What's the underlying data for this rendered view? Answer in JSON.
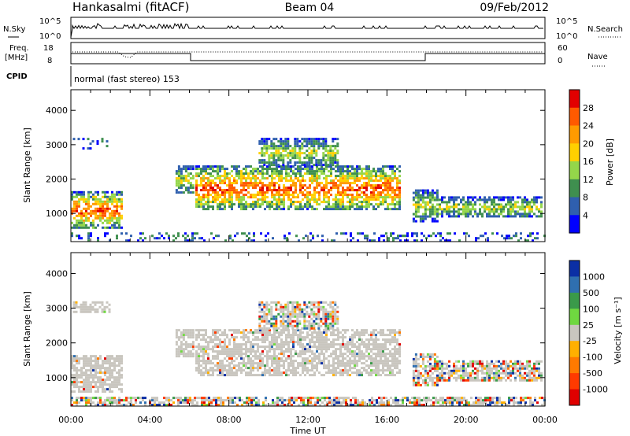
{
  "header": {
    "station": "Hankasalmi (fitACF)",
    "beam": "Beam 04",
    "date": "09/Feb/2012"
  },
  "info_panels": {
    "nsky_label": "N.Sky",
    "nsky_ticks": [
      "10^5",
      "10^0"
    ],
    "nsearch_label": "N.Search",
    "nsearch_ticks": [
      "10^5",
      "10^0"
    ],
    "freq_label": "Freq.",
    "freq_unit": "[MHz]",
    "freq_ticks": [
      "18",
      "8"
    ],
    "nave_label": "Nave",
    "nave_ticks": [
      "60",
      "0"
    ],
    "cpid_label": "CPID",
    "cpid_text": "normal (fast stereo) 153"
  },
  "chart_data": [
    {
      "type": "heatmap",
      "name": "power-panel",
      "ylabel": "Slant Range [km]",
      "xlabel": "Time UT",
      "x_ticks": [
        "00:00",
        "04:00",
        "08:00",
        "12:00",
        "16:00",
        "20:00",
        "00:00"
      ],
      "xlim_hours": [
        0,
        24
      ],
      "ylim": [
        180,
        4600
      ],
      "y_ticks": [
        1000,
        2000,
        3000,
        4000
      ],
      "colorbar": {
        "label": "Power [dB]",
        "tick_labels": [
          "28",
          "24",
          "20",
          "16",
          "12",
          "8",
          "4"
        ],
        "colors": [
          "#e20000",
          "#ff5a00",
          "#ff9b00",
          "#ffd000",
          "#94d64a",
          "#3f8f4f",
          "#2f5fae",
          "#0000ff"
        ]
      },
      "echo_regions": [
        {
          "t0": 0.0,
          "t1": 2.6,
          "r0": 600,
          "r1": 1650,
          "level": "high"
        },
        {
          "t0": 0.1,
          "t1": 2.0,
          "r0": 2900,
          "r1": 3200,
          "level": "low"
        },
        {
          "t0": 5.3,
          "t1": 6.2,
          "r0": 1600,
          "r1": 2400,
          "level": "mid"
        },
        {
          "t0": 6.3,
          "t1": 16.7,
          "r0": 1100,
          "r1": 2400,
          "level": "high"
        },
        {
          "t0": 9.5,
          "t1": 13.5,
          "r0": 2400,
          "r1": 3200,
          "level": "mid"
        },
        {
          "t0": 17.3,
          "t1": 18.5,
          "r0": 800,
          "r1": 1700,
          "level": "mid"
        },
        {
          "t0": 18.5,
          "t1": 23.8,
          "r0": 900,
          "r1": 1500,
          "level": "mid"
        },
        {
          "t0": 0.0,
          "t1": 24.0,
          "r0": 180,
          "r1": 450,
          "level": "low"
        }
      ]
    },
    {
      "type": "heatmap",
      "name": "velocity-panel",
      "ylabel": "Slant Range [km]",
      "xlabel": "Time UT",
      "x_ticks": [
        "00:00",
        "04:00",
        "08:00",
        "12:00",
        "16:00",
        "20:00",
        "00:00"
      ],
      "xlim_hours": [
        0,
        24
      ],
      "ylim": [
        180,
        4600
      ],
      "y_ticks": [
        1000,
        2000,
        3000,
        4000
      ],
      "colorbar": {
        "label": "Velocity [m s⁻¹]",
        "tick_labels": [
          "1000",
          "500",
          "100",
          "25",
          "-25",
          "-100",
          "-500",
          "-1000"
        ],
        "colors": [
          "#0b2fa5",
          "#2f6fb0",
          "#3a9a4a",
          "#6fd840",
          "#c9c6bf",
          "#ffb000",
          "#ff7a00",
          "#ff3a00",
          "#e00000"
        ]
      },
      "echo_regions": [
        {
          "t0": 0.0,
          "t1": 2.6,
          "r0": 600,
          "r1": 1650,
          "level": "ground"
        },
        {
          "t0": 0.1,
          "t1": 2.0,
          "r0": 2900,
          "r1": 3200,
          "level": "ground"
        },
        {
          "t0": 5.3,
          "t1": 6.2,
          "r0": 1600,
          "r1": 2400,
          "level": "ground"
        },
        {
          "t0": 6.3,
          "t1": 16.7,
          "r0": 1100,
          "r1": 2400,
          "level": "ground"
        },
        {
          "t0": 9.5,
          "t1": 13.5,
          "r0": 2400,
          "r1": 3200,
          "level": "mixed"
        },
        {
          "t0": 17.3,
          "t1": 18.5,
          "r0": 800,
          "r1": 1700,
          "level": "mixed"
        },
        {
          "t0": 18.5,
          "t1": 23.8,
          "r0": 900,
          "r1": 1500,
          "level": "mixed"
        },
        {
          "t0": 0.0,
          "t1": 24.0,
          "r0": 180,
          "r1": 450,
          "level": "mixed"
        }
      ]
    }
  ]
}
